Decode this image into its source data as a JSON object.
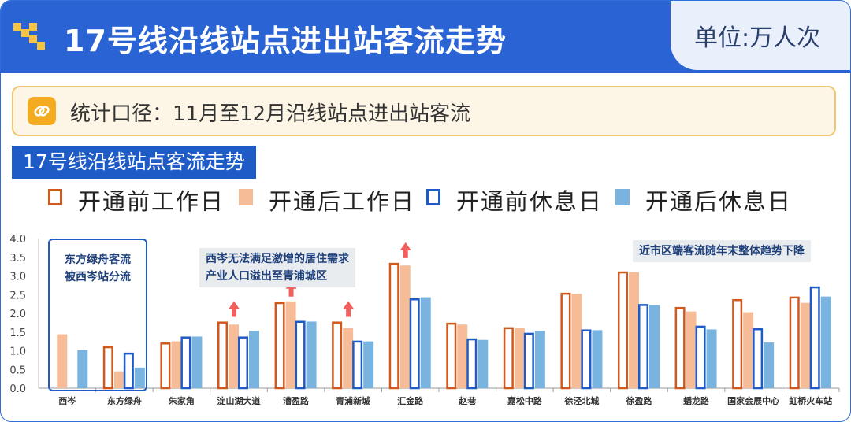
{
  "header": {
    "title": "17号线沿线站点进出站客流走势",
    "unit": "单位:万人次"
  },
  "note": {
    "text": "统计口径：11月至12月沿线站点进出站客流"
  },
  "subtitle": "17号线沿线站点客流走势",
  "colors": {
    "header_blue": "#2a63d4",
    "orange": "#d2591c",
    "peach": "#f6bc97",
    "blue_outline": "#1f5bc6",
    "light_blue": "#79b3e0",
    "arrow_red": "#f1605d"
  },
  "annotations": {
    "left_box": [
      "东方绿舟客流",
      "被西岑站分流"
    ],
    "middle": [
      "西岑无法满足激增的居住需求",
      "产业人口溢出至青浦城区"
    ],
    "right": "近市区端客流随年末整体趋势下降"
  },
  "chart_data": {
    "type": "bar",
    "categories": [
      "西岑",
      "东方绿舟",
      "朱家角",
      "淀山湖大道",
      "漕盈路",
      "青浦新城",
      "汇金路",
      "赵巷",
      "嘉松中路",
      "徐泾北城",
      "徐盈路",
      "蟠龙路",
      "国家会展中心",
      "虹桥火车站"
    ],
    "series": [
      {
        "name": "开通前工作日",
        "style": "outline",
        "color": "#d2591c",
        "values": [
          null,
          1.12,
          1.22,
          1.78,
          2.3,
          1.78,
          3.35,
          1.75,
          1.63,
          2.55,
          3.12,
          2.17,
          2.38,
          2.45
        ]
      },
      {
        "name": "开通后工作日",
        "style": "filled",
        "color": "#f6bc97",
        "values": [
          1.44,
          0.45,
          1.25,
          1.7,
          2.32,
          1.6,
          3.28,
          1.7,
          1.62,
          2.52,
          3.1,
          2.05,
          2.03,
          2.28
        ]
      },
      {
        "name": "开通前休息日",
        "style": "outline",
        "color": "#1f5bc6",
        "values": [
          null,
          0.95,
          1.38,
          1.38,
          1.8,
          1.27,
          2.4,
          1.33,
          1.48,
          1.57,
          2.25,
          1.67,
          1.6,
          2.72
        ]
      },
      {
        "name": "开通后休息日",
        "style": "filled",
        "color": "#79b3e0",
        "values": [
          1.02,
          0.55,
          1.38,
          1.53,
          1.78,
          1.25,
          2.43,
          1.29,
          1.53,
          1.55,
          2.22,
          1.57,
          1.22,
          2.45
        ]
      }
    ],
    "ylim": [
      0,
      4.0
    ],
    "yticks": [
      "0.0",
      "0.5",
      "1.0",
      "1.5",
      "2.0",
      "2.5",
      "3.0",
      "3.5",
      "4.0"
    ],
    "arrows": [
      "淀山湖大道",
      "漕盈路",
      "青浦新城",
      "汇金路"
    ]
  }
}
